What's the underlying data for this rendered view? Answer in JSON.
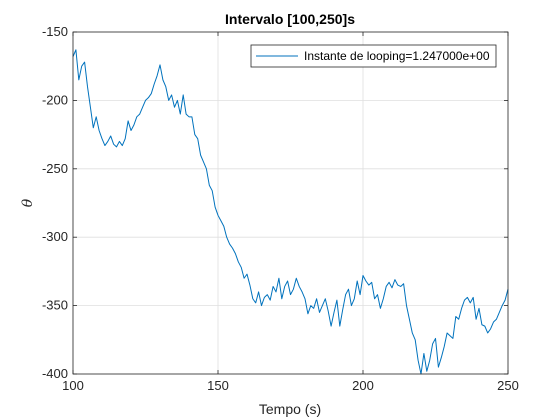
{
  "chart_data": {
    "type": "line",
    "title": "Intervalo [100,250]s",
    "xlabel": "Tempo (s)",
    "ylabel": "θ",
    "xlim": [
      100,
      250
    ],
    "ylim": [
      -400,
      -150
    ],
    "xticks": [
      100,
      150,
      200,
      250
    ],
    "yticks": [
      -400,
      -350,
      -300,
      -250,
      -200,
      -150
    ],
    "xtick_labels": [
      "100",
      "150",
      "200",
      "250"
    ],
    "ytick_labels": [
      "-400",
      "-350",
      "-300",
      "-250",
      "-200",
      "-150"
    ],
    "grid": true,
    "legend_position": "top-right",
    "series": [
      {
        "name": "Instante de looping=1.247000e+00",
        "color": "#0072BD",
        "x": [
          100,
          101,
          102,
          103,
          104,
          105,
          106,
          107,
          108,
          109,
          110,
          111,
          112,
          113,
          114,
          115,
          116,
          117,
          118,
          119,
          120,
          121,
          122,
          123,
          124,
          125,
          126,
          127,
          128,
          129,
          130,
          131,
          132,
          133,
          134,
          135,
          136,
          137,
          138,
          139,
          140,
          141,
          142,
          143,
          144,
          145,
          146,
          147,
          148,
          149,
          150,
          151,
          152,
          153,
          154,
          155,
          156,
          157,
          158,
          159,
          160,
          161,
          162,
          163,
          164,
          165,
          166,
          167,
          168,
          169,
          170,
          171,
          172,
          173,
          174,
          175,
          176,
          177,
          178,
          179,
          180,
          181,
          182,
          183,
          184,
          185,
          186,
          187,
          188,
          189,
          190,
          191,
          192,
          193,
          194,
          195,
          196,
          197,
          198,
          199,
          200,
          201,
          202,
          203,
          204,
          205,
          206,
          207,
          208,
          209,
          210,
          211,
          212,
          213,
          214,
          215,
          216,
          217,
          218,
          219,
          220,
          221,
          222,
          223,
          224,
          225,
          226,
          227,
          228,
          229,
          230,
          231,
          232,
          233,
          234,
          235,
          236,
          237,
          238,
          239,
          240,
          241,
          242,
          243,
          244,
          245,
          246,
          247,
          248,
          249,
          250
        ],
        "y": [
          -168,
          -163,
          -185,
          -175,
          -172,
          -190,
          -205,
          -220,
          -212,
          -222,
          -228,
          -233,
          -230,
          -226,
          -232,
          -234,
          -230,
          -233,
          -228,
          -215,
          -222,
          -218,
          -212,
          -210,
          -205,
          -200,
          -198,
          -195,
          -188,
          -182,
          -174,
          -185,
          -190,
          -200,
          -196,
          -205,
          -200,
          -210,
          -196,
          -210,
          -212,
          -212,
          -225,
          -228,
          -240,
          -245,
          -250,
          -262,
          -266,
          -278,
          -284,
          -288,
          -292,
          -300,
          -305,
          -308,
          -312,
          -318,
          -322,
          -330,
          -327,
          -335,
          -345,
          -348,
          -340,
          -350,
          -344,
          -342,
          -346,
          -336,
          -340,
          -330,
          -345,
          -336,
          -332,
          -342,
          -338,
          -330,
          -336,
          -340,
          -345,
          -356,
          -350,
          -352,
          -345,
          -355,
          -350,
          -345,
          -354,
          -365,
          -355,
          -346,
          -365,
          -353,
          -342,
          -338,
          -350,
          -345,
          -332,
          -342,
          -328,
          -332,
          -335,
          -333,
          -345,
          -342,
          -352,
          -345,
          -336,
          -333,
          -337,
          -331,
          -335,
          -336,
          -334,
          -350,
          -360,
          -370,
          -375,
          -390,
          -400,
          -385,
          -398,
          -390,
          -378,
          -374,
          -395,
          -388,
          -380,
          -370,
          -372,
          -374,
          -358,
          -360,
          -352,
          -346,
          -344,
          -348,
          -344,
          -360,
          -352,
          -364,
          -365,
          -370,
          -367,
          -362,
          -360,
          -355,
          -350,
          -346,
          -338
        ]
      }
    ]
  }
}
